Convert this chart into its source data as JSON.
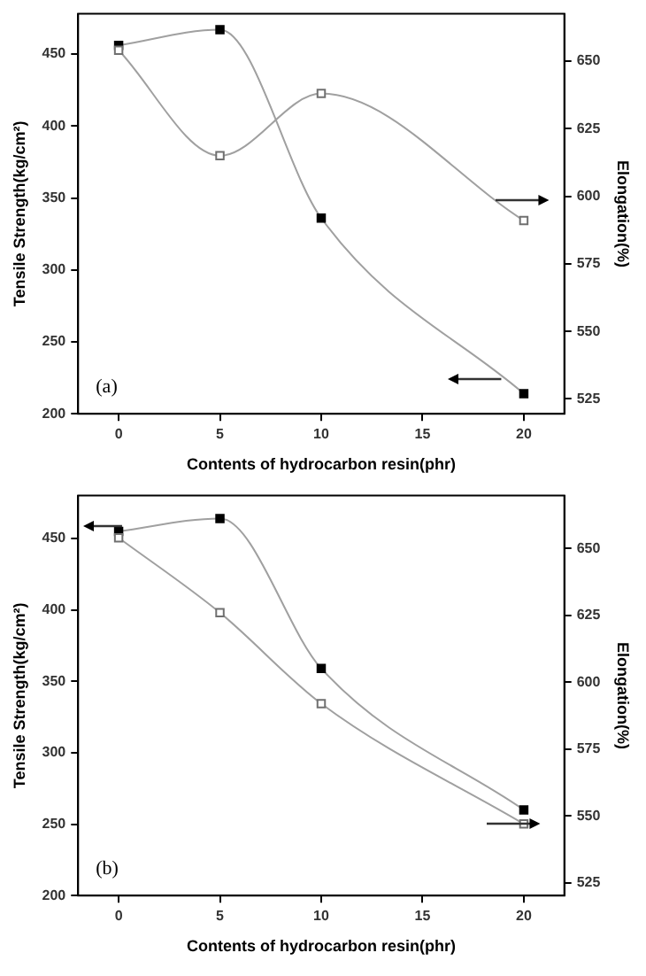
{
  "chart_data": [
    {
      "type": "line",
      "xlabel": "Contents of hydrocarbon resin(phr)",
      "ylabel": "Tensile Strength(kg/cm²)",
      "y2label": "Elongation(%)",
      "annotations": [
        "(a)"
      ],
      "x": [
        0,
        5,
        10,
        20
      ],
      "xlim": [
        -2,
        22
      ],
      "xticks": [
        0,
        5,
        10,
        15,
        20
      ],
      "ylim": [
        200,
        478
      ],
      "yticks": [
        200,
        250,
        300,
        350,
        400,
        450
      ],
      "y2lim": [
        519.5,
        667.5
      ],
      "y2ticks": [
        525,
        550,
        575,
        600,
        625,
        650
      ],
      "grid": false,
      "legend": false,
      "marker": "square",
      "series": [
        {
          "color": "#000000",
          "values": [
            456,
            467,
            336,
            214
          ]
        },
        {
          "color": "#707070",
          "axis": "y2",
          "values": [
            654,
            615,
            638,
            591
          ]
        }
      ]
    },
    {
      "type": "line",
      "xlabel": "Contents of hydrocarbon resin(phr)",
      "ylabel": "Tensile Strength(kg/cm²)",
      "y2label": "Elongation(%)",
      "annotations": [
        "(b)"
      ],
      "x": [
        0,
        5,
        10,
        20
      ],
      "xlim": [
        -2,
        22
      ],
      "xticks": [
        0,
        5,
        10,
        15,
        20
      ],
      "ylim": [
        200,
        480
      ],
      "yticks": [
        200,
        250,
        300,
        350,
        400,
        450
      ],
      "y2lim": [
        520.2,
        669.8
      ],
      "y2ticks": [
        525,
        550,
        575,
        600,
        625,
        650
      ],
      "grid": false,
      "legend": false,
      "marker": "square",
      "series": [
        {
          "color": "#000000",
          "values": [
            455,
            464,
            359,
            260
          ]
        },
        {
          "color": "#707070",
          "axis": "y2",
          "values": [
            654,
            626,
            592,
            547
          ]
        }
      ]
    }
  ]
}
